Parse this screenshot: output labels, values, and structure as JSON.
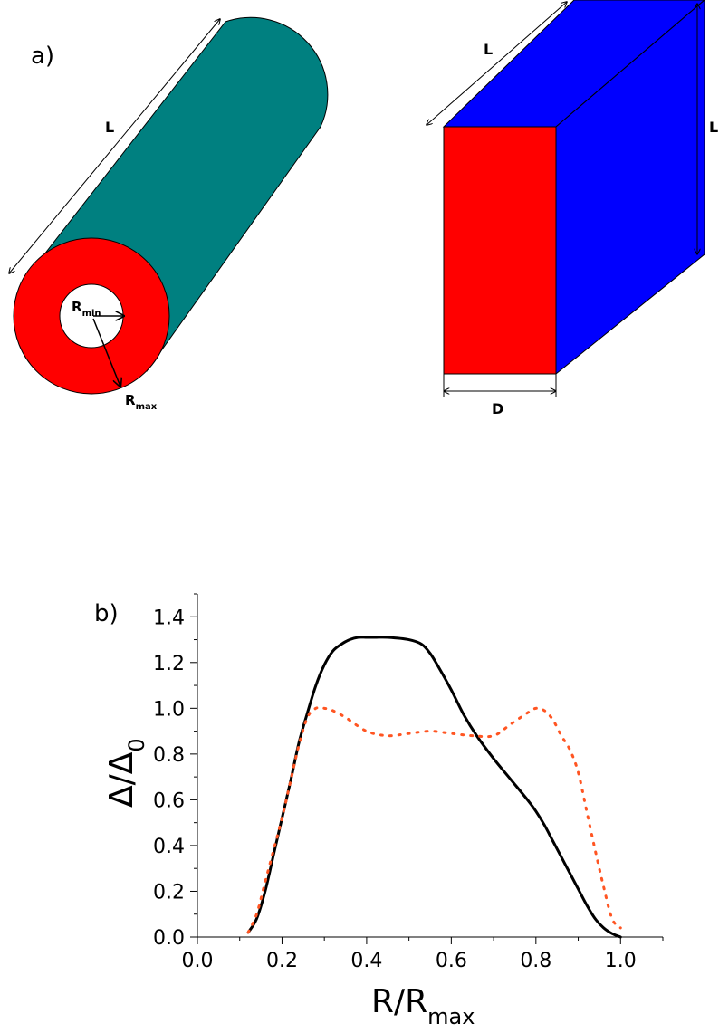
{
  "panel_a": {
    "label": "a)",
    "cylinder": {
      "length_label": "L",
      "rmin_main": "R",
      "rmin_sub": "min",
      "rmax_main": "R",
      "rmax_sub": "max",
      "colors": {
        "body": "#008080",
        "annulus": "#ff0000",
        "hole": "#ffffff"
      }
    },
    "slab": {
      "length_label": "L",
      "height_label": "L",
      "width_label": "D",
      "colors": {
        "front": "#ff0000",
        "side": "#0000ff"
      }
    }
  },
  "panel_b": {
    "label": "b)"
  },
  "chart_data": {
    "type": "line",
    "xlabel_main": "R/R",
    "xlabel_sub": "max",
    "ylabel_main": "Δ/Δ",
    "ylabel_sub": "0",
    "xlim": [
      0.0,
      1.1
    ],
    "ylim": [
      0.0,
      1.5
    ],
    "xticks": [
      "0.0",
      "0.2",
      "0.4",
      "0.6",
      "0.8",
      "1.0"
    ],
    "yticks": [
      "0.0",
      "0.2",
      "0.4",
      "0.6",
      "0.8",
      "1.0",
      "1.2",
      "1.4"
    ],
    "grid": false,
    "series": [
      {
        "style": "solid",
        "color": "#000000",
        "x": [
          0.12,
          0.14,
          0.16,
          0.18,
          0.2,
          0.22,
          0.24,
          0.26,
          0.28,
          0.3,
          0.32,
          0.34,
          0.36,
          0.38,
          0.4,
          0.42,
          0.45,
          0.5,
          0.53,
          0.55,
          0.57,
          0.6,
          0.63,
          0.66,
          0.7,
          0.74,
          0.78,
          0.8,
          0.82,
          0.84,
          0.86,
          0.88,
          0.9,
          0.92,
          0.94,
          0.96,
          0.98,
          1.0
        ],
        "y": [
          0.02,
          0.08,
          0.2,
          0.36,
          0.52,
          0.68,
          0.85,
          0.98,
          1.1,
          1.19,
          1.25,
          1.28,
          1.3,
          1.31,
          1.31,
          1.31,
          1.31,
          1.3,
          1.28,
          1.24,
          1.18,
          1.08,
          0.97,
          0.88,
          0.78,
          0.69,
          0.6,
          0.55,
          0.49,
          0.42,
          0.35,
          0.28,
          0.21,
          0.14,
          0.08,
          0.04,
          0.015,
          0.0
        ]
      },
      {
        "style": "dotted",
        "color": "#ff5522",
        "x": [
          0.12,
          0.14,
          0.16,
          0.18,
          0.2,
          0.22,
          0.24,
          0.26,
          0.28,
          0.3,
          0.32,
          0.35,
          0.4,
          0.45,
          0.5,
          0.55,
          0.6,
          0.65,
          0.7,
          0.74,
          0.78,
          0.8,
          0.82,
          0.84,
          0.86,
          0.88,
          0.9,
          0.92,
          0.94,
          0.96,
          0.98,
          1.0
        ],
        "y": [
          0.02,
          0.1,
          0.24,
          0.38,
          0.52,
          0.68,
          0.84,
          0.96,
          1.0,
          1.0,
          0.99,
          0.96,
          0.9,
          0.88,
          0.89,
          0.9,
          0.89,
          0.88,
          0.88,
          0.93,
          0.98,
          1.0,
          0.99,
          0.95,
          0.88,
          0.82,
          0.72,
          0.55,
          0.38,
          0.22,
          0.08,
          0.04
        ]
      }
    ]
  }
}
